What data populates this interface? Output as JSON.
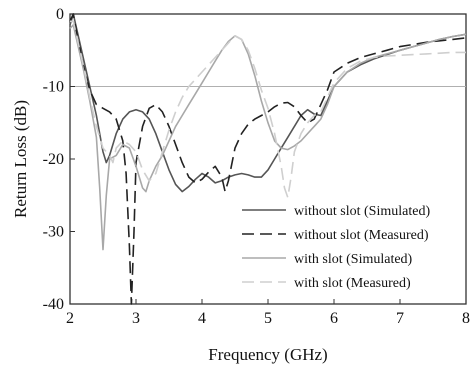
{
  "chart_data": {
    "type": "line",
    "title": "",
    "xlabel": "Frequency (GHz)",
    "ylabel": "Return Loss (dB)",
    "xlim": [
      2,
      8
    ],
    "ylim": [
      -40,
      0
    ],
    "xticks": [
      "2",
      "3",
      "4",
      "5",
      "6",
      "7",
      "8"
    ],
    "yticks": [
      "0",
      "-10",
      "-20",
      "-30",
      "-40"
    ],
    "grid": false,
    "reference_line": {
      "y": -10,
      "color": "#b0b0b0"
    },
    "legend_position": "bottom-right",
    "series": [
      {
        "name": "without slot (Simulated)",
        "color": "#555555",
        "dash": "solid",
        "x": [
          2.0,
          2.05,
          2.1,
          2.2,
          2.3,
          2.4,
          2.5,
          2.55,
          2.6,
          2.7,
          2.8,
          2.9,
          3.0,
          3.1,
          3.2,
          3.3,
          3.4,
          3.5,
          3.6,
          3.7,
          3.8,
          3.9,
          4.0,
          4.1,
          4.2,
          4.3,
          4.4,
          4.5,
          4.6,
          4.7,
          4.8,
          4.9,
          5.0,
          5.1,
          5.2,
          5.3,
          5.4,
          5.5,
          5.6,
          5.7,
          5.8,
          5.9,
          6.0,
          6.2,
          6.4,
          6.6,
          6.8,
          7.0,
          7.2,
          7.4,
          7.6,
          7.8,
          8.0
        ],
        "y": [
          -1.5,
          0.0,
          -2.0,
          -6.0,
          -10.0,
          -14.0,
          -19.0,
          -20.5,
          -19.5,
          -16.5,
          -14.5,
          -13.5,
          -13.2,
          -13.5,
          -14.5,
          -16.5,
          -19.0,
          -21.5,
          -23.5,
          -24.5,
          -23.8,
          -22.8,
          -22.0,
          -22.5,
          -23.3,
          -23.0,
          -22.5,
          -22.2,
          -22.0,
          -22.2,
          -22.5,
          -22.5,
          -21.5,
          -20.0,
          -18.5,
          -17.0,
          -15.5,
          -14.0,
          -13.2,
          -13.8,
          -14.0,
          -12.0,
          -10.0,
          -8.0,
          -7.0,
          -6.2,
          -5.6,
          -5.0,
          -4.5,
          -4.0,
          -3.5,
          -3.1,
          -2.8
        ]
      },
      {
        "name": "without slot (Measured)",
        "color": "#222222",
        "dash": "12,6",
        "x": [
          2.0,
          2.05,
          2.1,
          2.2,
          2.3,
          2.4,
          2.5,
          2.6,
          2.7,
          2.8,
          2.85,
          2.9,
          2.93,
          2.97,
          3.0,
          3.1,
          3.2,
          3.3,
          3.4,
          3.5,
          3.6,
          3.7,
          3.8,
          3.9,
          4.0,
          4.1,
          4.2,
          4.3,
          4.35,
          4.4,
          4.5,
          4.6,
          4.7,
          4.8,
          4.9,
          5.0,
          5.1,
          5.2,
          5.3,
          5.4,
          5.5,
          5.6,
          5.7,
          5.8,
          5.9,
          6.0,
          6.2,
          6.4,
          6.6,
          6.8,
          7.0,
          7.2,
          7.4,
          7.6,
          7.8,
          8.0
        ],
        "y": [
          -1.0,
          0.0,
          -2.5,
          -7.0,
          -10.5,
          -12.5,
          -13.0,
          -13.5,
          -14.5,
          -17.5,
          -22.0,
          -32.0,
          -40.0,
          -30.0,
          -20.5,
          -15.5,
          -13.0,
          -12.5,
          -13.5,
          -15.5,
          -18.0,
          -20.5,
          -22.5,
          -23.3,
          -22.8,
          -21.8,
          -21.0,
          -22.5,
          -24.5,
          -23.0,
          -18.5,
          -16.5,
          -15.2,
          -14.5,
          -14.0,
          -13.5,
          -12.8,
          -12.3,
          -12.2,
          -12.8,
          -14.0,
          -15.0,
          -14.5,
          -12.5,
          -10.5,
          -8.0,
          -6.8,
          -6.0,
          -5.5,
          -5.0,
          -4.5,
          -4.2,
          -3.9,
          -3.7,
          -3.5,
          -3.3
        ]
      },
      {
        "name": "with slot (Simulated)",
        "color": "#a8a8a8",
        "dash": "solid",
        "x": [
          2.0,
          2.05,
          2.1,
          2.2,
          2.3,
          2.4,
          2.45,
          2.5,
          2.55,
          2.6,
          2.7,
          2.8,
          2.9,
          3.0,
          3.1,
          3.15,
          3.2,
          3.3,
          3.4,
          3.5,
          3.6,
          3.7,
          3.8,
          3.9,
          4.0,
          4.1,
          4.2,
          4.3,
          4.4,
          4.5,
          4.6,
          4.7,
          4.8,
          4.9,
          5.0,
          5.1,
          5.2,
          5.3,
          5.4,
          5.5,
          5.6,
          5.7,
          5.8,
          5.9,
          6.0,
          6.2,
          6.4,
          6.6,
          6.8,
          7.0,
          7.2,
          7.4,
          7.6,
          7.8,
          8.0
        ],
        "y": [
          -2.0,
          -1.5,
          -3.5,
          -7.5,
          -12.0,
          -17.0,
          -24.0,
          -32.5,
          -25.0,
          -20.0,
          -19.5,
          -18.0,
          -18.5,
          -21.0,
          -24.0,
          -24.5,
          -23.0,
          -21.0,
          -19.5,
          -17.5,
          -15.5,
          -14.0,
          -12.5,
          -11.0,
          -9.5,
          -8.0,
          -6.5,
          -5.0,
          -3.8,
          -3.0,
          -3.5,
          -5.5,
          -8.5,
          -12.0,
          -15.0,
          -17.5,
          -18.5,
          -18.7,
          -18.2,
          -17.5,
          -16.5,
          -15.5,
          -14.5,
          -12.5,
          -10.0,
          -8.0,
          -6.8,
          -6.0,
          -5.5,
          -5.0,
          -4.5,
          -4.0,
          -3.5,
          -3.1,
          -2.8
        ]
      },
      {
        "name": "with slot (Measured)",
        "color": "#cfcfcf",
        "dash": "12,6",
        "x": [
          2.0,
          2.05,
          2.1,
          2.2,
          2.3,
          2.4,
          2.5,
          2.6,
          2.65,
          2.7,
          2.8,
          2.9,
          3.0,
          3.1,
          3.2,
          3.3,
          3.4,
          3.5,
          3.6,
          3.7,
          3.8,
          3.9,
          4.0,
          4.1,
          4.2,
          4.3,
          4.4,
          4.5,
          4.6,
          4.7,
          4.8,
          4.9,
          5.0,
          5.1,
          5.2,
          5.25,
          5.3,
          5.35,
          5.4,
          5.5,
          5.6,
          5.7,
          5.8,
          5.9,
          6.0,
          6.2,
          6.4,
          6.6,
          6.8,
          7.0,
          7.2,
          7.4,
          7.6,
          7.8,
          8.0
        ],
        "y": [
          -1.0,
          -1.0,
          -3.0,
          -7.0,
          -11.5,
          -15.5,
          -18.5,
          -19.5,
          -20.5,
          -18.5,
          -17.5,
          -18.0,
          -19.0,
          -21.5,
          -23.0,
          -22.0,
          -19.0,
          -16.0,
          -13.5,
          -11.5,
          -10.0,
          -9.0,
          -8.0,
          -7.0,
          -6.0,
          -5.0,
          -4.0,
          -3.0,
          -3.5,
          -5.0,
          -7.5,
          -10.5,
          -13.0,
          -16.5,
          -21.0,
          -24.0,
          -25.3,
          -22.5,
          -19.0,
          -16.5,
          -15.0,
          -14.0,
          -13.5,
          -11.5,
          -9.5,
          -7.5,
          -6.5,
          -6.0,
          -5.8,
          -5.7,
          -5.6,
          -5.5,
          -5.4,
          -5.3,
          -5.3
        ]
      }
    ]
  }
}
